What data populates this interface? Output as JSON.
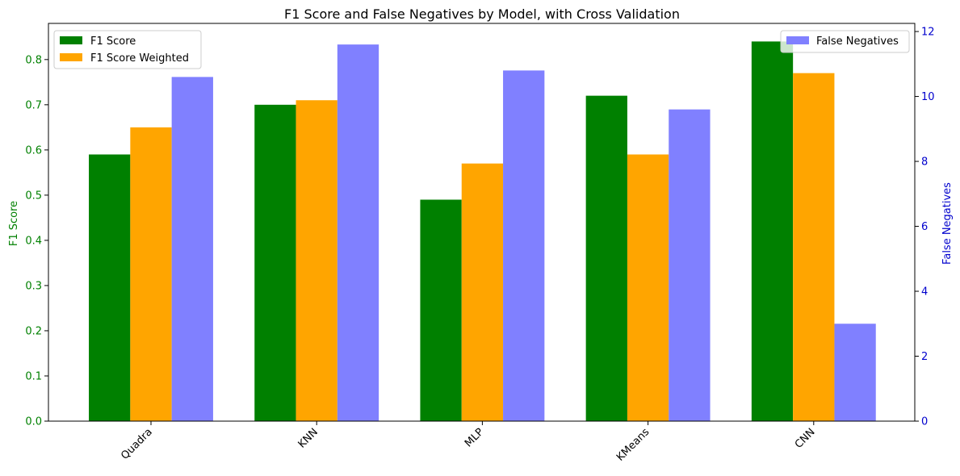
{
  "chart_data": {
    "type": "bar",
    "title": "F1 Score and False Negatives by Model, with Cross Validation",
    "categories": [
      "Quadra",
      "KNN",
      "MLP",
      "KMeans",
      "CNN"
    ],
    "left_axis": {
      "label": "F1 Score",
      "ylim": [
        0,
        0.88
      ],
      "ticks": [
        "0.0",
        "0.1",
        "0.2",
        "0.3",
        "0.4",
        "0.5",
        "0.6",
        "0.7",
        "0.8"
      ],
      "tick_values": [
        0,
        0.1,
        0.2,
        0.3,
        0.4,
        0.5,
        0.6,
        0.7,
        0.8
      ],
      "color": "#008000"
    },
    "right_axis": {
      "label": "False Negatives",
      "ylim": [
        0,
        12.25
      ],
      "ticks": [
        "0",
        "2",
        "4",
        "6",
        "8",
        "10",
        "12"
      ],
      "tick_values": [
        0,
        2,
        4,
        6,
        8,
        10,
        12
      ],
      "color": "#0000cd"
    },
    "series": [
      {
        "name": "F1 Score",
        "axis": "left",
        "color": "#008000",
        "values": [
          0.59,
          0.7,
          0.49,
          0.72,
          0.84
        ]
      },
      {
        "name": "F1 Score Weighted",
        "axis": "left",
        "color": "#ffa500",
        "values": [
          0.65,
          0.71,
          0.57,
          0.59,
          0.77
        ]
      },
      {
        "name": "False Negatives",
        "axis": "right",
        "color": "#8080ff",
        "values": [
          10.6,
          11.6,
          10.8,
          9.6,
          3.0
        ]
      }
    ],
    "legends": {
      "left": {
        "placement": "upper-left",
        "entries": [
          "F1 Score",
          "F1 Score Weighted"
        ]
      },
      "right": {
        "placement": "upper-right",
        "entries": [
          "False Negatives"
        ]
      }
    },
    "grid": false
  }
}
